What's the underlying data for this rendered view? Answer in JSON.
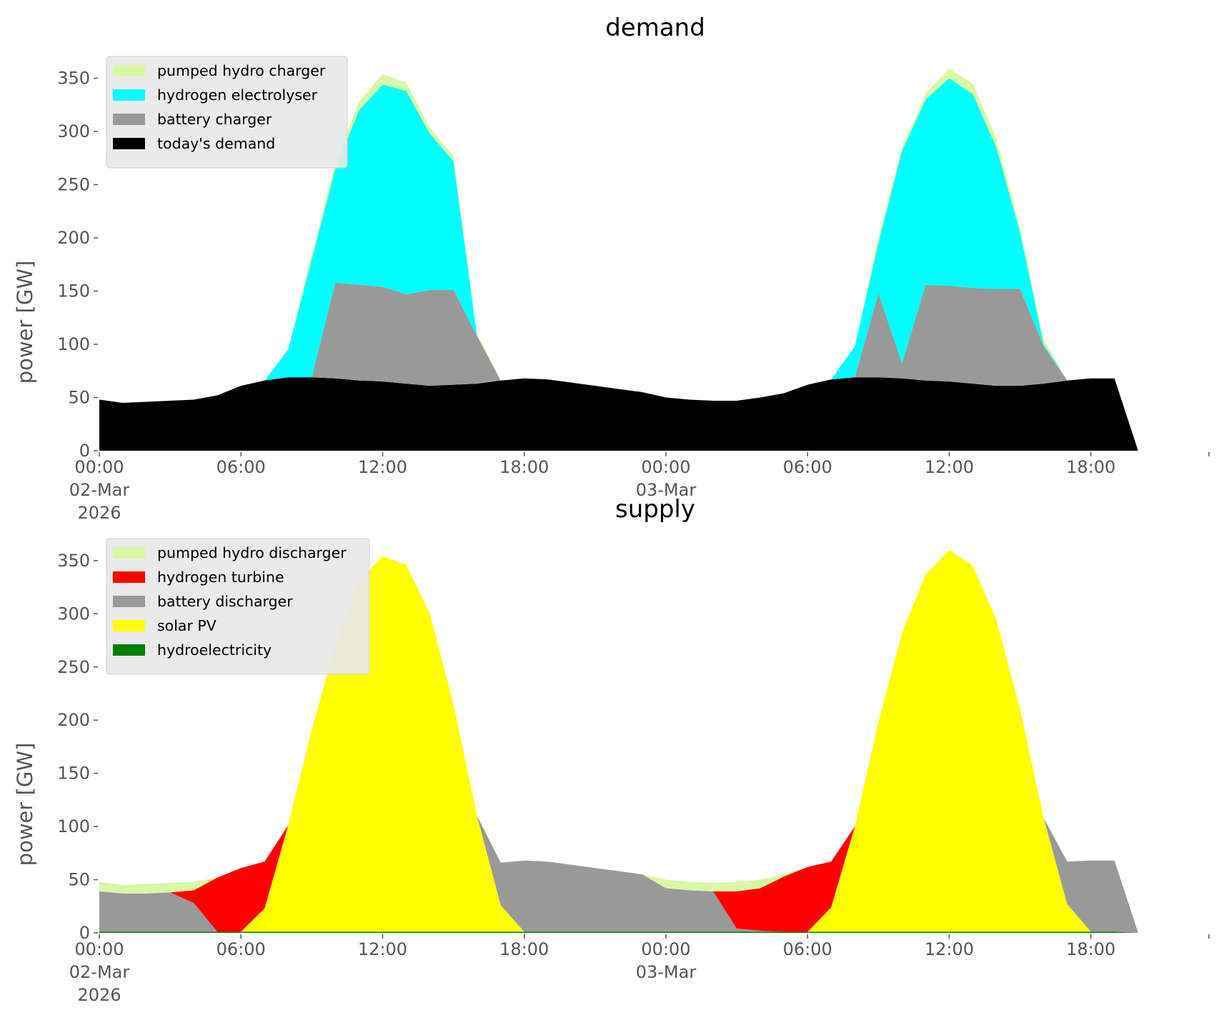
{
  "chart_data": [
    {
      "type": "area",
      "stacked": true,
      "title": "demand",
      "ylabel": "power [GW]",
      "ylim": [
        0,
        380
      ],
      "yticks": [
        0,
        50,
        100,
        150,
        200,
        250,
        300,
        350
      ],
      "x_hours_from": "00:00 02-Mar 2026",
      "x": [
        0,
        1,
        2,
        3,
        4,
        5,
        6,
        7,
        8,
        9,
        10,
        11,
        12,
        13,
        14,
        15,
        16,
        17,
        18,
        19,
        20,
        21,
        22,
        23,
        24,
        25,
        26,
        27,
        28,
        29,
        30,
        31,
        32,
        33,
        34,
        35,
        36,
        37,
        38,
        39,
        40,
        41,
        42,
        43,
        44
      ],
      "xticks": [
        {
          "hour": 0,
          "label": [
            "00:00",
            "02-Mar",
            "2026"
          ]
        },
        {
          "hour": 6,
          "label": [
            "06:00"
          ]
        },
        {
          "hour": 12,
          "label": [
            "12:00"
          ]
        },
        {
          "hour": 18,
          "label": [
            "18:00"
          ]
        },
        {
          "hour": 24,
          "label": [
            "00:00",
            "03-Mar"
          ]
        },
        {
          "hour": 30,
          "label": [
            "06:00"
          ]
        },
        {
          "hour": 36,
          "label": [
            "12:00"
          ]
        },
        {
          "hour": 42,
          "label": [
            "18:00"
          ]
        },
        {
          "hour": 47,
          "label": []
        }
      ],
      "grid": false,
      "legend_position": "top-left",
      "series": [
        {
          "name": "today's demand",
          "color": "#000000",
          "values": [
            48,
            45,
            46,
            47,
            48,
            52,
            61,
            66,
            69,
            69,
            68,
            66,
            65,
            63,
            61,
            62,
            63,
            66,
            68,
            67,
            64,
            61,
            58,
            55,
            50,
            48,
            47,
            47,
            50,
            54,
            62,
            67,
            69,
            69,
            68,
            66,
            65,
            63,
            61,
            61,
            63,
            66,
            68,
            68,
            0
          ]
        },
        {
          "name": "battery charger",
          "color": "#999999",
          "values": [
            0,
            0,
            0,
            0,
            0,
            0,
            0,
            0,
            0,
            0,
            90,
            90,
            89,
            84,
            90,
            89,
            45,
            0,
            0,
            0,
            0,
            0,
            0,
            0,
            0,
            0,
            0,
            0,
            0,
            0,
            0,
            0,
            0,
            79,
            14,
            90,
            90,
            90,
            91,
            91,
            35,
            0,
            0,
            0,
            0
          ]
        },
        {
          "name": "hydrogen electrolyser",
          "color": "#00ffff",
          "values": [
            0,
            0,
            0,
            0,
            0,
            0,
            0,
            0,
            26,
            111,
            107,
            164,
            190,
            191,
            147,
            121,
            0,
            0,
            0,
            0,
            0,
            0,
            0,
            0,
            0,
            0,
            0,
            0,
            0,
            0,
            0,
            0,
            29,
            47,
            200,
            174,
            195,
            182,
            133,
            53,
            2,
            0,
            0,
            0,
            0
          ]
        },
        {
          "name": "pumped hydro charger",
          "color": "#d9f7a6",
          "values": [
            0,
            0,
            0,
            0,
            0,
            0,
            0,
            0,
            0,
            5,
            5,
            8,
            10,
            8,
            5,
            5,
            2,
            0,
            0,
            0,
            0,
            0,
            0,
            0,
            0,
            0,
            0,
            0,
            0,
            0,
            0,
            0,
            0,
            5,
            3,
            6,
            9,
            10,
            8,
            5,
            5,
            0,
            0,
            0,
            0
          ]
        }
      ]
    },
    {
      "type": "area",
      "stacked": true,
      "title": "supply",
      "ylabel": "power [GW]",
      "ylim": [
        0,
        380
      ],
      "yticks": [
        0,
        50,
        100,
        150,
        200,
        250,
        300,
        350
      ],
      "x_hours_from": "00:00 02-Mar 2026",
      "x": [
        0,
        1,
        2,
        3,
        4,
        5,
        6,
        7,
        8,
        9,
        10,
        11,
        12,
        13,
        14,
        15,
        16,
        17,
        18,
        19,
        20,
        21,
        22,
        23,
        24,
        25,
        26,
        27,
        28,
        29,
        30,
        31,
        32,
        33,
        34,
        35,
        36,
        37,
        38,
        39,
        40,
        41,
        42,
        43,
        44
      ],
      "xticks": [
        {
          "hour": 0,
          "label": [
            "00:00",
            "02-Mar",
            "2026"
          ]
        },
        {
          "hour": 6,
          "label": [
            "06:00"
          ]
        },
        {
          "hour": 12,
          "label": [
            "12:00"
          ]
        },
        {
          "hour": 18,
          "label": [
            "18:00"
          ]
        },
        {
          "hour": 24,
          "label": [
            "00:00",
            "03-Mar"
          ]
        },
        {
          "hour": 30,
          "label": [
            "06:00"
          ]
        },
        {
          "hour": 36,
          "label": [
            "12:00"
          ]
        },
        {
          "hour": 42,
          "label": [
            "18:00"
          ]
        },
        {
          "hour": 47,
          "label": []
        }
      ],
      "grid": false,
      "legend_position": "top-left",
      "series": [
        {
          "name": "hydroelectricity",
          "color": "#008000",
          "values": [
            1,
            1,
            1,
            1,
            1,
            1,
            1,
            1,
            1,
            1,
            1,
            1,
            1,
            1,
            1,
            1,
            1,
            1,
            1,
            1,
            1,
            1,
            1,
            1,
            1,
            1,
            1,
            1,
            1,
            1,
            1,
            1,
            1,
            1,
            1,
            1,
            1,
            1,
            1,
            1,
            1,
            1,
            1,
            1,
            0
          ]
        },
        {
          "name": "solar PV",
          "color": "#ffff00",
          "values": [
            0,
            0,
            0,
            0,
            0,
            0,
            0,
            22,
            100,
            190,
            270,
            330,
            353,
            345,
            299,
            214,
            109,
            25,
            0,
            0,
            0,
            0,
            0,
            0,
            0,
            0,
            0,
            0,
            0,
            0,
            0,
            23,
            99,
            197,
            281,
            336,
            359,
            344,
            293,
            209,
            107,
            26,
            0,
            0,
            0
          ]
        },
        {
          "name": "battery discharger",
          "color": "#999999",
          "values": [
            38,
            36,
            36,
            37,
            27,
            0,
            0,
            0,
            0,
            0,
            0,
            0,
            0,
            0,
            0,
            0,
            0,
            40,
            67,
            66,
            63,
            60,
            57,
            54,
            41,
            39,
            38,
            3,
            1,
            0,
            0,
            0,
            0,
            0,
            0,
            0,
            0,
            0,
            0,
            0,
            0,
            40,
            67,
            67,
            0
          ]
        },
        {
          "name": "hydrogen turbine",
          "color": "#ff0000",
          "values": [
            0,
            0,
            0,
            0,
            12,
            51,
            60,
            44,
            0,
            0,
            0,
            0,
            0,
            0,
            0,
            0,
            0,
            0,
            0,
            0,
            0,
            0,
            0,
            0,
            0,
            0,
            0,
            35,
            40,
            52,
            61,
            43,
            0,
            0,
            0,
            0,
            0,
            0,
            0,
            0,
            0,
            0,
            0,
            0,
            0
          ]
        },
        {
          "name": "pumped hydro discharger",
          "color": "#d9f7a6",
          "values": [
            9,
            8,
            9,
            9,
            8,
            0,
            0,
            0,
            0,
            0,
            0,
            0,
            0,
            0,
            0,
            0,
            0,
            0,
            0,
            0,
            0,
            0,
            0,
            0,
            8,
            8,
            8,
            9,
            8,
            2,
            0,
            0,
            0,
            0,
            0,
            0,
            0,
            0,
            0,
            0,
            0,
            0,
            0,
            0,
            0
          ]
        }
      ]
    }
  ]
}
